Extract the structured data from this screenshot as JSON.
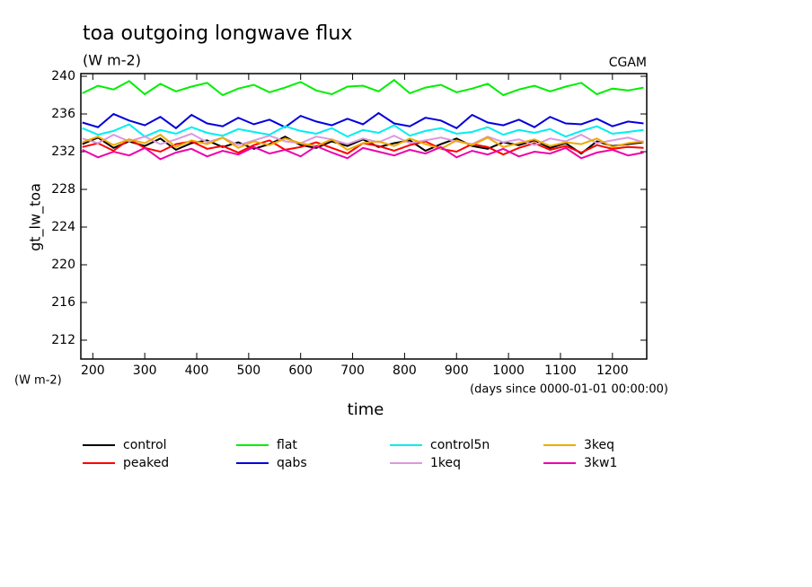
{
  "chart_data": {
    "type": "line",
    "title": "toa outgoing longwave flux",
    "subtitle": "(W m-2)",
    "source": "CGAM",
    "ylabel": "gt_lw_toa",
    "y_unit_label": "(W m-2)",
    "xlabel": "time",
    "x_unit_label": "(days since 0000-01-01 00:00:00)",
    "x": [
      180,
      210,
      240,
      270,
      300,
      330,
      360,
      390,
      420,
      450,
      480,
      510,
      540,
      570,
      600,
      630,
      660,
      690,
      720,
      750,
      780,
      810,
      840,
      870,
      900,
      930,
      960,
      990,
      1020,
      1050,
      1080,
      1110,
      1140,
      1170,
      1200,
      1230,
      1260
    ],
    "xlim": [
      177,
      1266
    ],
    "xticks": [
      200,
      300,
      400,
      500,
      600,
      700,
      800,
      900,
      1000,
      1100,
      1200
    ],
    "ylim": [
      210,
      240
    ],
    "yticks": [
      212,
      216,
      220,
      224,
      228,
      232,
      236,
      240
    ],
    "series": [
      {
        "name": "control",
        "color": "#000000",
        "values": [
          232.8,
          233.5,
          232.4,
          233.1,
          232.6,
          233.4,
          232.2,
          232.9,
          233.2,
          232.5,
          233.0,
          232.3,
          232.8,
          233.6,
          232.7,
          232.4,
          233.1,
          232.6,
          233.3,
          232.5,
          232.9,
          233.2,
          232.1,
          232.8,
          233.4,
          232.6,
          232.3,
          233.0,
          232.7,
          233.2,
          232.4,
          232.9,
          231.8,
          233.1,
          232.6,
          232.8,
          233.0
        ]
      },
      {
        "name": "peaked",
        "color": "#ff0000",
        "values": [
          232.5,
          232.9,
          232.1,
          233.3,
          232.4,
          232.0,
          232.8,
          233.1,
          232.3,
          232.6,
          231.9,
          232.7,
          233.2,
          232.2,
          232.5,
          233.0,
          232.4,
          231.8,
          232.9,
          232.6,
          232.1,
          232.7,
          233.1,
          232.3,
          232.0,
          232.8,
          232.5,
          231.7,
          232.4,
          232.9,
          232.2,
          232.6,
          231.9,
          232.7,
          232.3,
          232.5,
          232.4
        ]
      },
      {
        "name": "flat",
        "color": "#00ee00",
        "values": [
          238.2,
          239.0,
          238.6,
          239.5,
          238.1,
          239.2,
          238.4,
          238.9,
          239.3,
          238.0,
          238.7,
          239.1,
          238.3,
          238.8,
          239.4,
          238.5,
          238.1,
          238.9,
          239.0,
          238.4,
          239.6,
          238.2,
          238.8,
          239.1,
          238.3,
          238.7,
          239.2,
          238.0,
          238.6,
          239.0,
          238.4,
          238.9,
          239.3,
          238.1,
          238.7,
          238.5,
          238.8
        ]
      },
      {
        "name": "qabs",
        "color": "#0000dd",
        "values": [
          235.1,
          234.6,
          236.0,
          235.3,
          234.8,
          235.7,
          234.5,
          235.9,
          235.0,
          234.7,
          235.6,
          234.9,
          235.4,
          234.6,
          235.8,
          235.2,
          234.8,
          235.5,
          234.9,
          236.1,
          235.0,
          234.7,
          235.6,
          235.3,
          234.5,
          235.9,
          235.1,
          234.8,
          235.4,
          234.6,
          235.7,
          235.0,
          234.9,
          235.5,
          234.7,
          235.2,
          235.0
        ]
      },
      {
        "name": "control5n",
        "color": "#00eeee",
        "values": [
          234.5,
          233.8,
          234.2,
          234.9,
          233.6,
          234.3,
          233.9,
          234.6,
          234.0,
          233.7,
          234.4,
          234.1,
          233.8,
          234.7,
          234.2,
          233.9,
          234.5,
          233.6,
          234.3,
          234.0,
          234.8,
          233.7,
          234.2,
          234.5,
          233.9,
          234.1,
          234.6,
          233.8,
          234.3,
          234.0,
          234.4,
          233.6,
          234.2,
          234.7,
          233.9,
          234.1,
          234.3
        ]
      },
      {
        "name": "1keq",
        "color": "#dd99dd",
        "values": [
          233.4,
          232.9,
          233.8,
          233.1,
          233.6,
          232.8,
          233.3,
          233.9,
          233.0,
          233.5,
          232.7,
          233.2,
          233.7,
          233.1,
          232.9,
          233.6,
          233.3,
          232.8,
          233.4,
          233.0,
          233.7,
          232.9,
          233.2,
          233.5,
          233.1,
          232.8,
          233.6,
          233.0,
          233.3,
          232.7,
          233.4,
          233.1,
          233.8,
          232.9,
          233.2,
          233.5,
          233.0
        ]
      },
      {
        "name": "3keq",
        "color": "#eeaa00",
        "values": [
          233.0,
          233.6,
          232.7,
          233.3,
          232.9,
          233.8,
          232.5,
          233.2,
          232.8,
          233.5,
          232.4,
          233.1,
          232.7,
          233.4,
          232.9,
          232.6,
          233.3,
          232.2,
          232.9,
          233.1,
          232.6,
          233.4,
          232.8,
          232.3,
          233.2,
          232.7,
          233.5,
          232.5,
          232.9,
          233.3,
          232.6,
          233.0,
          232.8,
          233.4,
          232.5,
          232.9,
          233.1
        ]
      },
      {
        "name": "3kw1",
        "color": "#ee00aa",
        "values": [
          232.2,
          231.4,
          232.0,
          231.6,
          232.4,
          231.2,
          231.9,
          232.3,
          231.5,
          232.1,
          231.7,
          232.5,
          231.8,
          232.2,
          231.5,
          232.6,
          231.9,
          231.3,
          232.4,
          232.0,
          231.6,
          232.2,
          231.8,
          232.5,
          231.4,
          232.1,
          231.7,
          232.3,
          231.5,
          232.0,
          231.8,
          232.4,
          231.3,
          231.9,
          232.2,
          231.6,
          231.9
        ]
      }
    ]
  }
}
